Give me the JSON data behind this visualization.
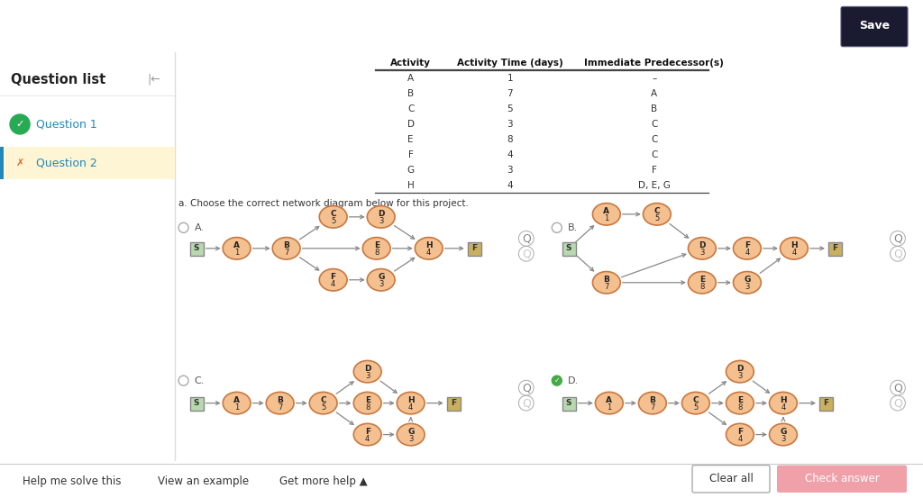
{
  "bg_color": "#ffffff",
  "header_color": "#1a8a9a",
  "node_color": "#f4c090",
  "node_edge_color": "#c87840",
  "sq_color_green": "#b8d8b0",
  "sq_color_tan": "#c8b060",
  "sq_edge_color": "#888888",
  "arrow_color": "#888888",
  "table_headers": [
    "Activity",
    "Activity Time (days)",
    "Immediate Predecessor(s)"
  ],
  "table_data": [
    [
      "A",
      "1",
      "–"
    ],
    [
      "B",
      "7",
      "A"
    ],
    [
      "C",
      "5",
      "B"
    ],
    [
      "D",
      "3",
      "C"
    ],
    [
      "E",
      "8",
      "C"
    ],
    [
      "F",
      "4",
      "C"
    ],
    [
      "G",
      "3",
      "F"
    ],
    [
      "H",
      "4",
      "D, E, G"
    ]
  ],
  "instruction": "a. Choose the correct network diagram below for this project.",
  "sidebar_bg": "#ffffff",
  "sidebar_border": "#dddddd",
  "footer_bg": "#f8f8f8",
  "q1_color": "#2eaa5a",
  "q2_color": "#3090b0",
  "q2_bg": "#fef5d4",
  "q2_border": "#d4a000"
}
